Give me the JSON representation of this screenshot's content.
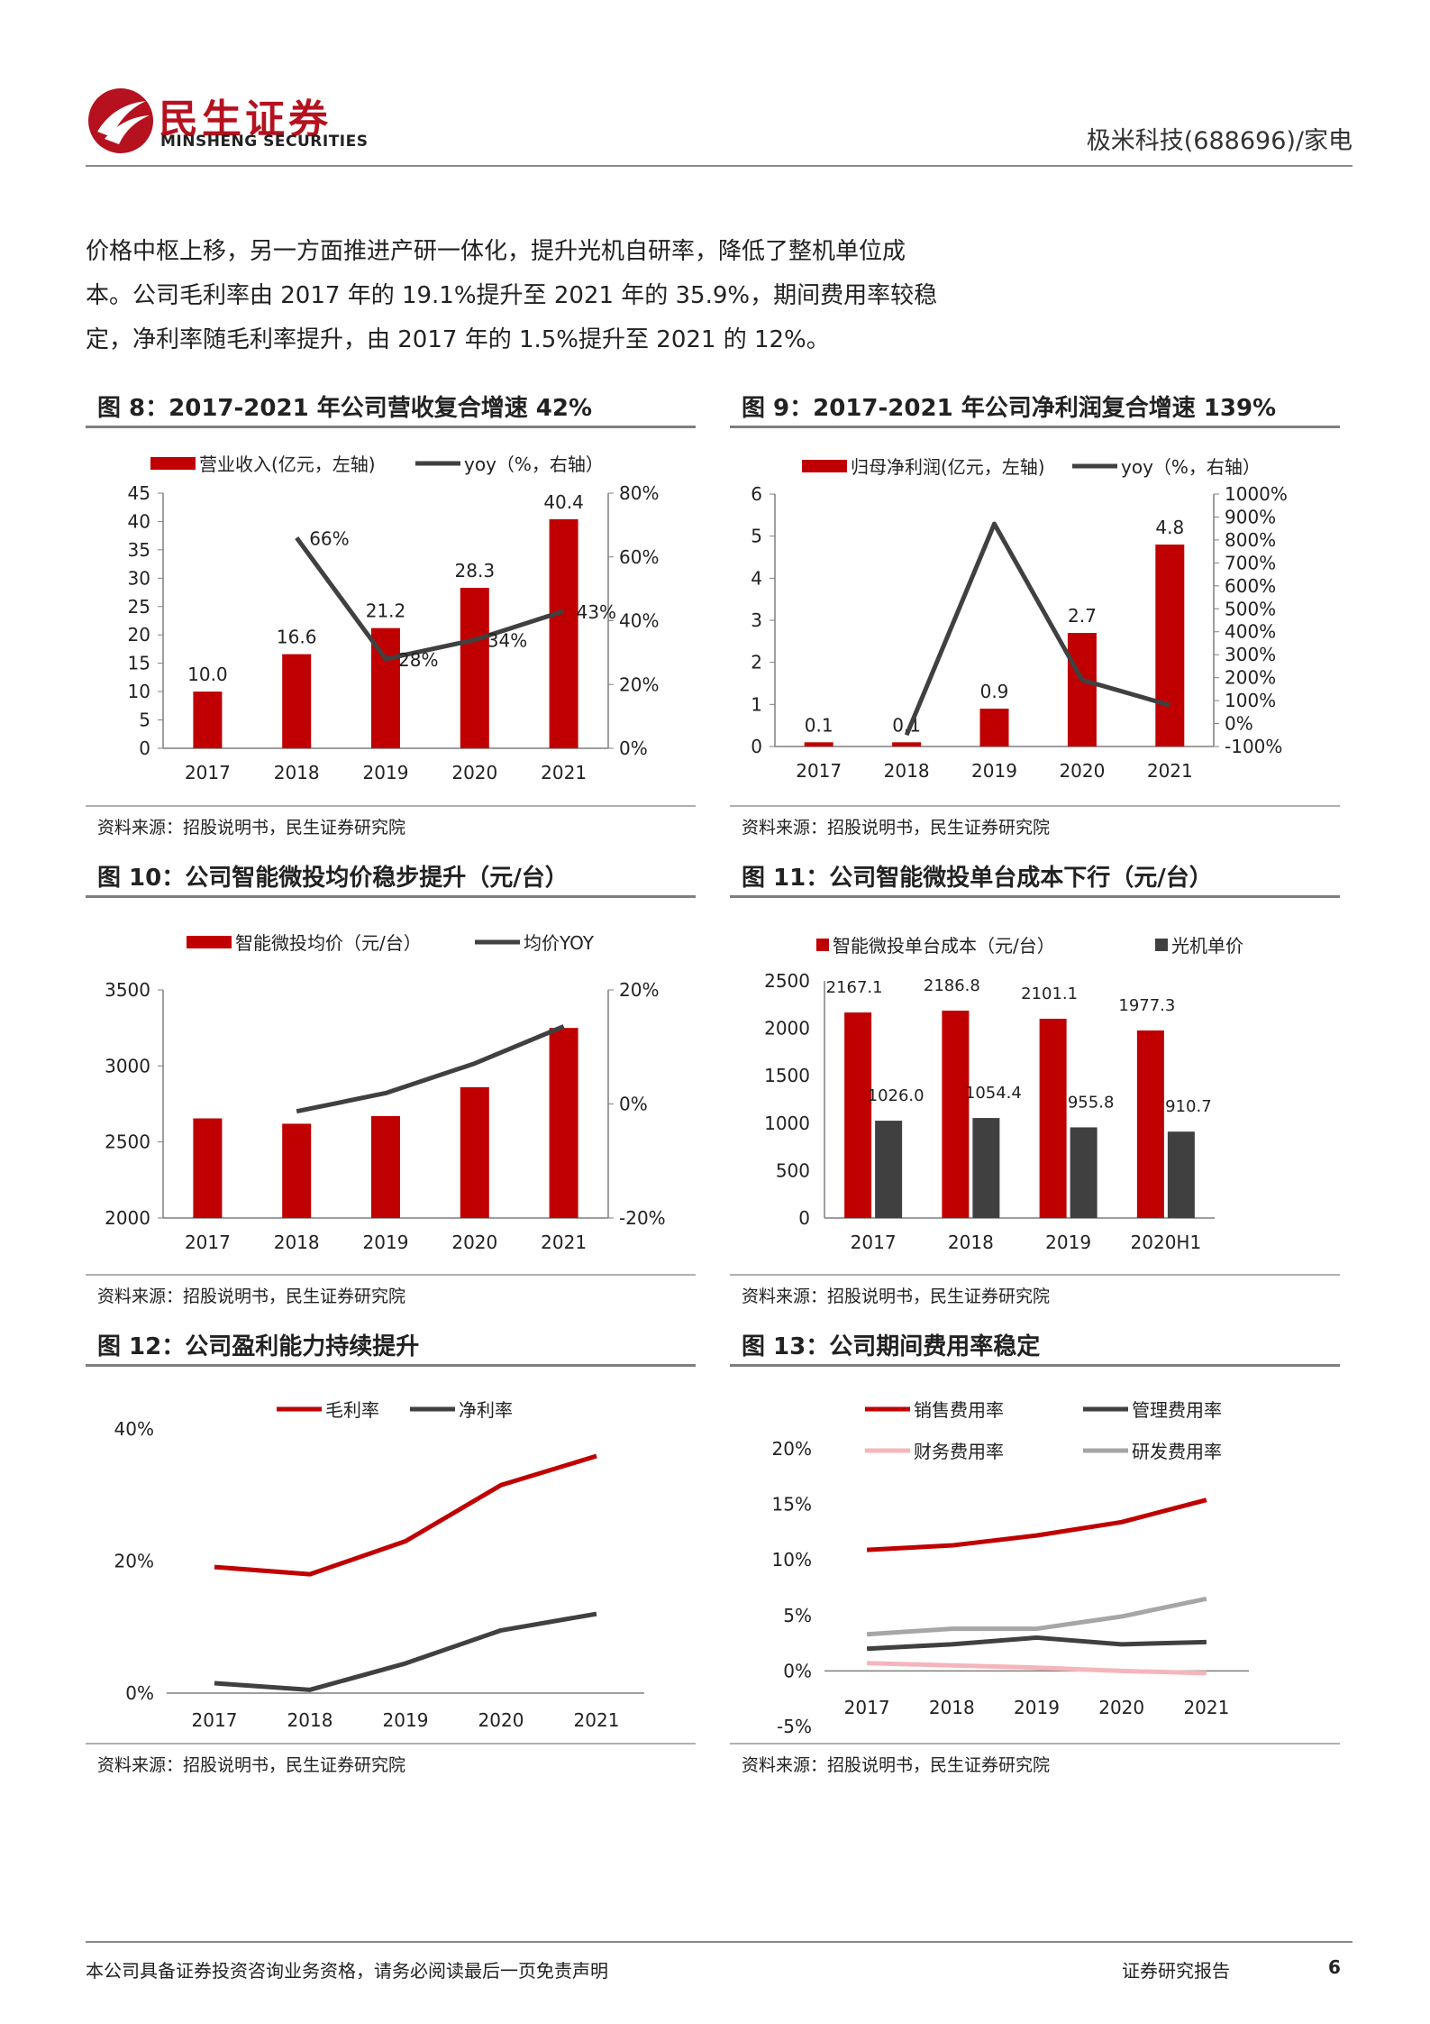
{
  "header": {
    "brand_cn": "民生证券",
    "brand_en": "MINSHENG SECURITIES",
    "report_tag": "极米科技(688696)/家电"
  },
  "paragraph": {
    "line1": "价格中枢上移，另一方面推进产研一体化，提升光机自研率，降低了整机单位成",
    "line2": "本。公司毛利率由 2017 年的 19.1%提升至 2021 年的 35.9%，期间费用率较稳",
    "line3": "定，净利率随毛利率提升，由 2017 年的 1.5%提升至 2021 的 12%。"
  },
  "colors": {
    "red": "#c00000",
    "dark": "#404040",
    "pink": "#f4b6bb",
    "gray": "#a6a6a6",
    "brand": "#b5111e"
  },
  "figures": {
    "fig8": {
      "title": "图 8：2017-2021 年公司营收复合增速 42%",
      "source": "资料来源：招股说明书，民生证券研究院",
      "chart_data": {
        "type": "bar",
        "categories": [
          "2017",
          "2018",
          "2019",
          "2020",
          "2021"
        ],
        "series": [
          {
            "name": "营业收入(亿元，左轴)",
            "type": "bar",
            "values": [
              10.0,
              16.6,
              21.2,
              28.3,
              40.4
            ],
            "labels": [
              "10.0",
              "16.6",
              "21.2",
              "28.3",
              "40.4"
            ]
          },
          {
            "name": "yoy（%，右轴）",
            "type": "line",
            "values": [
              null,
              66,
              28,
              34,
              43
            ],
            "labels": [
              "",
              "66%",
              "28%",
              "34%",
              "43%"
            ]
          }
        ],
        "ylim_left": [
          0,
          45
        ],
        "yticks_left": [
          "0",
          "5",
          "10",
          "15",
          "20",
          "25",
          "30",
          "35",
          "40",
          "45"
        ],
        "ylim_right": [
          0,
          80
        ],
        "yticks_right": [
          "0%",
          "20%",
          "40%",
          "60%",
          "80%"
        ],
        "legend": "top"
      }
    },
    "fig9": {
      "title": "图 9：2017-2021 年公司净利润复合增速 139%",
      "source": "资料来源：招股说明书，民生证券研究院",
      "chart_data": {
        "type": "bar",
        "categories": [
          "2017",
          "2018",
          "2019",
          "2020",
          "2021"
        ],
        "series": [
          {
            "name": "归母净利润(亿元，左轴)",
            "type": "bar",
            "values": [
              0.1,
              0.1,
              0.9,
              2.7,
              4.8
            ],
            "labels": [
              "0.1",
              "0.1",
              "0.9",
              "2.7",
              "4.8"
            ]
          },
          {
            "name": "yoy（%，右轴）",
            "type": "line",
            "values": [
              null,
              -50,
              870,
              190,
              80
            ],
            "labels": [
              "",
              "",
              "",
              "",
              ""
            ]
          }
        ],
        "ylim_left": [
          0,
          6
        ],
        "yticks_left": [
          "0",
          "1",
          "2",
          "3",
          "4",
          "5",
          "6"
        ],
        "ylim_right": [
          -100,
          1000
        ],
        "yticks_right": [
          "-100%",
          "0%",
          "100%",
          "200%",
          "300%",
          "400%",
          "500%",
          "600%",
          "700%",
          "800%",
          "900%",
          "1000%"
        ],
        "legend": "top"
      }
    },
    "fig10": {
      "title": "图 10：公司智能微投均价稳步提升（元/台）",
      "source": "资料来源：招股说明书，民生证券研究院",
      "chart_data": {
        "type": "bar",
        "categories": [
          "2017",
          "2018",
          "2019",
          "2020",
          "2021"
        ],
        "series": [
          {
            "name": "智能微投均价（元/台）",
            "type": "bar",
            "values": [
              2655,
              2620,
              2670,
              2860,
              3250
            ]
          },
          {
            "name": "均价YOY",
            "type": "line",
            "values": [
              null,
              -1.3,
              1.9,
              7.1,
              13.6
            ]
          }
        ],
        "ylim_left": [
          2000,
          3500
        ],
        "yticks_left": [
          "2000",
          "2500",
          "3000",
          "3500"
        ],
        "ylim_right": [
          -20,
          20
        ],
        "yticks_right": [
          "-20%",
          "0%",
          "20%"
        ],
        "legend": "top"
      }
    },
    "fig11": {
      "title": "图 11：公司智能微投单台成本下行（元/台）",
      "source": "资料来源：招股说明书，民生证券研究院",
      "chart_data": {
        "type": "bar",
        "categories": [
          "2017",
          "2018",
          "2019",
          "2020H1"
        ],
        "series": [
          {
            "name": "智能微投单台成本（元/台）",
            "values": [
              2167.1,
              2186.8,
              2101.1,
              1977.3
            ],
            "labels": [
              "2167.1",
              "2186.8",
              "2101.1",
              "1977.3"
            ]
          },
          {
            "name": "光机单价",
            "values": [
              1026.0,
              1054.4,
              955.8,
              910.7
            ],
            "labels": [
              "1026.0",
              "1054.4",
              "955.8",
              "910.7"
            ]
          }
        ],
        "ylim": [
          0,
          2500
        ],
        "yticks": [
          "0",
          "500",
          "1000",
          "1500",
          "2000",
          "2500"
        ],
        "legend": "top"
      }
    },
    "fig12": {
      "title": "图 12：公司盈利能力持续提升",
      "source": "资料来源：招股说明书，民生证券研究院",
      "chart_data": {
        "type": "line",
        "categories": [
          "2017",
          "2018",
          "2019",
          "2020",
          "2021"
        ],
        "series": [
          {
            "name": "毛利率",
            "values": [
              19.1,
              18.0,
              23.0,
              31.5,
              35.9
            ]
          },
          {
            "name": "净利率",
            "values": [
              1.5,
              0.5,
              4.5,
              9.5,
              12.0
            ]
          }
        ],
        "ylim": [
          0,
          40
        ],
        "yticks": [
          "0%",
          "20%",
          "40%"
        ],
        "legend": "top"
      }
    },
    "fig13": {
      "title": "图 13：公司期间费用率稳定",
      "source": "资料来源：招股说明书，民生证券研究院",
      "chart_data": {
        "type": "line",
        "categories": [
          "2017",
          "2018",
          "2019",
          "2020",
          "2021"
        ],
        "series": [
          {
            "name": "销售费用率",
            "values": [
              10.9,
              11.3,
              12.2,
              13.4,
              15.4
            ]
          },
          {
            "name": "管理费用率",
            "values": [
              2.0,
              2.4,
              3.0,
              2.4,
              2.6
            ]
          },
          {
            "name": "财务费用率",
            "values": [
              0.7,
              0.5,
              0.3,
              0.0,
              -0.2
            ]
          },
          {
            "name": "研发费用率",
            "values": [
              3.3,
              3.8,
              3.8,
              4.9,
              6.5
            ]
          }
        ],
        "ylim": [
          -5,
          20
        ],
        "yticks": [
          "-5%",
          "0%",
          "5%",
          "10%",
          "15%",
          "20%"
        ],
        "legend": "top"
      }
    }
  },
  "footer": {
    "disclaimer": "本公司具备证券投资咨询业务资格，请务必阅读最后一页免责声明",
    "report_type": "证券研究报告",
    "page": "6"
  }
}
